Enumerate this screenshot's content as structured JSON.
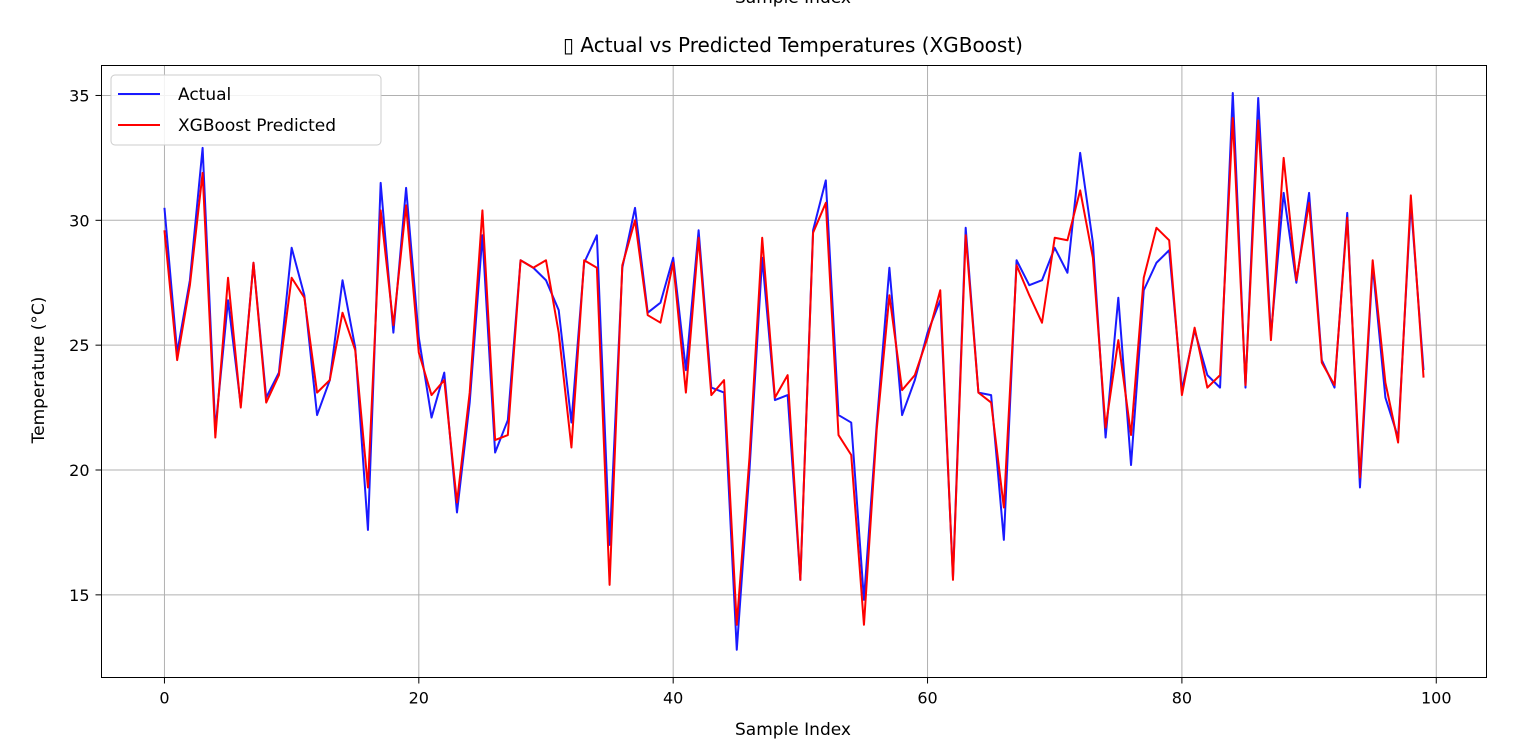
{
  "top_cut_label": "Sample Index",
  "chart_data": {
    "type": "line",
    "title": "▯ Actual vs Predicted Temperatures (XGBoost)",
    "xlabel": "Sample Index",
    "ylabel": "Temperature (°C)",
    "xlim": [
      -4.95,
      103.95
    ],
    "ylim": [
      11.69,
      36.2
    ],
    "xticks": [
      0,
      20,
      40,
      60,
      80,
      100
    ],
    "yticks": [
      15,
      20,
      25,
      30,
      35
    ],
    "grid": true,
    "legend_position": "upper-left",
    "series": [
      {
        "name": "Actual",
        "color": "#1a1aff",
        "values": [
          30.5,
          24.7,
          27.6,
          32.9,
          21.6,
          26.8,
          22.6,
          28.3,
          22.9,
          23.9,
          28.9,
          27.0,
          22.2,
          23.6,
          27.6,
          24.9,
          17.6,
          31.5,
          25.5,
          31.3,
          25.3,
          22.1,
          23.9,
          18.3,
          22.7,
          29.4,
          20.7,
          22.0,
          28.4,
          28.1,
          27.6,
          26.4,
          21.9,
          28.3,
          29.4,
          17.0,
          28.1,
          30.5,
          26.3,
          26.7,
          28.5,
          24.0,
          29.6,
          23.3,
          23.1,
          12.8,
          20.0,
          28.5,
          22.8,
          23.0,
          15.6,
          29.6,
          31.6,
          22.2,
          21.9,
          14.8,
          21.8,
          28.1,
          22.2,
          23.6,
          25.5,
          26.8,
          15.7,
          29.7,
          23.1,
          23.0,
          17.2,
          28.4,
          27.4,
          27.6,
          28.9,
          27.9,
          32.7,
          29.1,
          21.3,
          26.9,
          20.2,
          27.2,
          28.3,
          28.8,
          23.2,
          25.6,
          23.8,
          23.3,
          35.1,
          23.3,
          34.9,
          25.4,
          31.1,
          27.5,
          31.1,
          24.4,
          23.3,
          30.3,
          19.3,
          28.2,
          22.9,
          21.3,
          30.7,
          24.0
        ]
      },
      {
        "name": "XGBoost Predicted",
        "color": "#ff0000",
        "values": [
          29.6,
          24.4,
          27.4,
          31.9,
          21.3,
          27.7,
          22.5,
          28.3,
          22.7,
          23.8,
          27.7,
          26.9,
          23.1,
          23.6,
          26.3,
          24.8,
          19.3,
          30.4,
          25.8,
          30.6,
          24.7,
          23.0,
          23.6,
          18.7,
          23.1,
          30.4,
          21.2,
          21.4,
          28.4,
          28.1,
          28.4,
          25.5,
          20.9,
          28.4,
          28.1,
          15.4,
          28.2,
          30.0,
          26.2,
          25.9,
          28.3,
          23.1,
          29.3,
          23.0,
          23.6,
          13.8,
          20.5,
          29.3,
          22.9,
          23.8,
          15.6,
          29.5,
          30.7,
          21.4,
          20.6,
          13.8,
          21.6,
          27.0,
          23.2,
          23.8,
          25.3,
          27.2,
          15.6,
          29.4,
          23.1,
          22.7,
          18.5,
          28.2,
          27.0,
          25.9,
          29.3,
          29.2,
          31.2,
          28.5,
          21.7,
          25.2,
          21.4,
          27.7,
          29.7,
          29.2,
          23.0,
          25.7,
          23.3,
          23.8,
          34.1,
          23.4,
          34.0,
          25.2,
          32.5,
          27.6,
          30.7,
          24.3,
          23.4,
          30.1,
          19.7,
          28.4,
          23.5,
          21.1,
          31.0,
          23.7
        ]
      }
    ]
  }
}
